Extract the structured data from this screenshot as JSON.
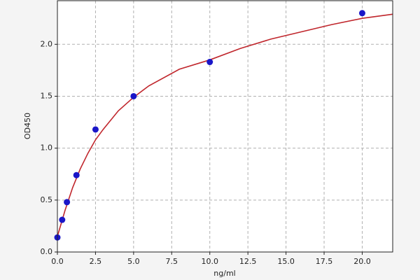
{
  "chart_data": {
    "type": "scatter",
    "xlabel": "ng/ml",
    "ylabel": "OD450",
    "xlim": [
      0,
      22
    ],
    "ylim": [
      0,
      2.42
    ],
    "xticks": [
      {
        "value": 0,
        "label": "0.0"
      },
      2.5,
      {
        "value": 5,
        "label": "5.0"
      },
      7.5,
      {
        "value": 10,
        "label": "10.0"
      },
      12.5,
      {
        "value": 15,
        "label": "15.0"
      },
      17.5,
      {
        "value": 20,
        "label": "20.0"
      }
    ],
    "yticks": [
      {
        "value": 0,
        "label": "0.0"
      },
      0.5,
      {
        "value": 1,
        "label": "1.0"
      },
      1.5,
      {
        "value": 2,
        "label": "2.0"
      }
    ],
    "grid": true,
    "series": [
      {
        "type": "line",
        "color": "#c0262c",
        "x": [
          0,
          0.5,
          1,
          1.5,
          2,
          2.5,
          3,
          4,
          5,
          6,
          8,
          10,
          12,
          14,
          16,
          18,
          20,
          22
        ],
        "values": [
          0.15,
          0.4,
          0.62,
          0.8,
          0.95,
          1.08,
          1.18,
          1.36,
          1.49,
          1.6,
          1.76,
          1.85,
          1.96,
          2.05,
          2.12,
          2.19,
          2.25,
          2.29
        ]
      },
      {
        "type": "scatter",
        "color": "#1a16c8",
        "x": [
          0,
          0.3125,
          0.625,
          1.25,
          2.5,
          5,
          10,
          20
        ],
        "values": [
          0.14,
          0.31,
          0.48,
          0.74,
          1.18,
          1.5,
          1.83,
          2.3
        ]
      }
    ]
  }
}
